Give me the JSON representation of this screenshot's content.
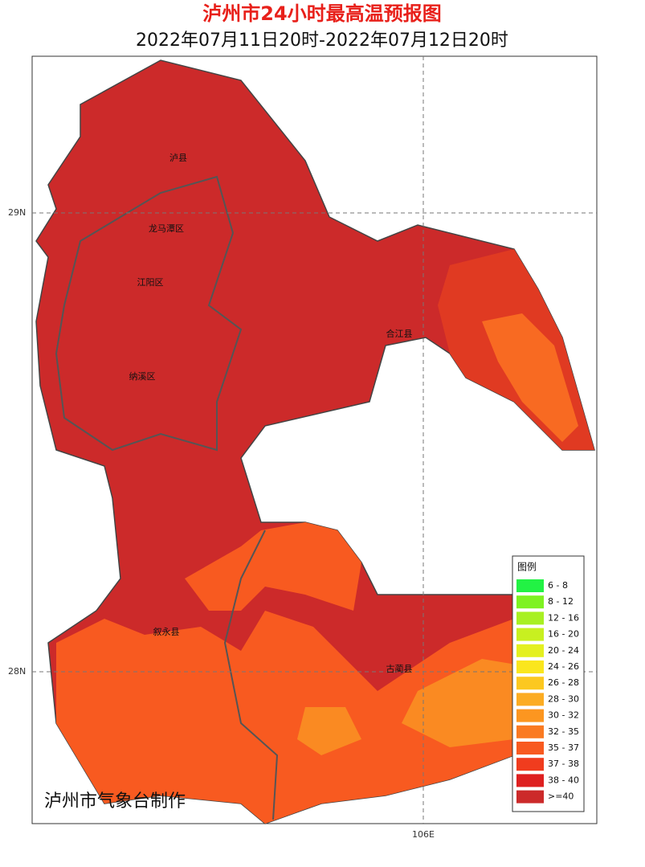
{
  "header": {
    "title": "泸州市24小时最高温预报图",
    "subtitle": "2022年07月11日20时-2022年07月12日20时"
  },
  "map": {
    "grid_labels": {
      "lat_29": "29N",
      "lat_28": "28N",
      "lon_106": "106E"
    },
    "places": [
      "泸县",
      "龙马潭区",
      "江阳区",
      "纳溪区",
      "合江县",
      "叙永县",
      "古蔺县"
    ],
    "credit": "泸州市气象台制作"
  },
  "legend": {
    "title": "图例",
    "items": [
      {
        "label": "6 - 8",
        "color": "#22f244"
      },
      {
        "label": "8 - 12",
        "color": "#7ef222"
      },
      {
        "label": "12 - 16",
        "color": "#a8f022"
      },
      {
        "label": "16 - 20",
        "color": "#c8f020"
      },
      {
        "label": "20 - 24",
        "color": "#e4f020"
      },
      {
        "label": "24 - 26",
        "color": "#fae61e"
      },
      {
        "label": "26 - 28",
        "color": "#fcc820"
      },
      {
        "label": "28 - 30",
        "color": "#fcac22"
      },
      {
        "label": "30 - 32",
        "color": "#fc9620"
      },
      {
        "label": "32 - 35",
        "color": "#fa7a22"
      },
      {
        "label": "35 - 37",
        "color": "#f85a20"
      },
      {
        "label": "37 - 38",
        "color": "#f03c1e"
      },
      {
        "label": "38 - 40",
        "color": "#de2020"
      },
      {
        "label": ">=40",
        "color": "#cc2a2a"
      }
    ]
  }
}
